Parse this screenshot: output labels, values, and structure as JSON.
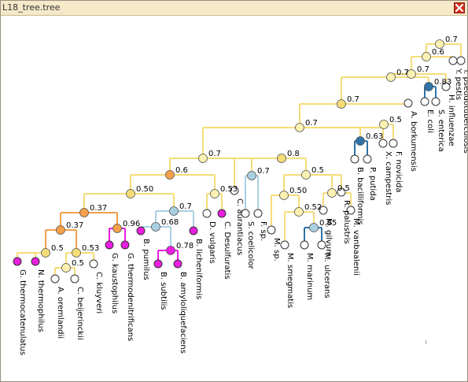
{
  "window": {
    "title": "L18_tree.tree",
    "close_icon": "close-icon"
  },
  "colors": {
    "orange": "#f5a14b",
    "yellow": "#f5dc77",
    "light_yellow": "#fbf1b3",
    "light_blue": "#a9cfe0",
    "blue": "#2f73a8",
    "magenta": "#e91ee0",
    "white": "#ffffff"
  },
  "tree": {
    "leaves": [
      {
        "id": "L1",
        "label": "G. thermocatenulatus"
      },
      {
        "id": "L2",
        "label": "N. thermophilus"
      },
      {
        "id": "L3",
        "label": "A. oremlandii"
      },
      {
        "id": "L4",
        "label": "C. beijerinckii"
      },
      {
        "id": "L5",
        "label": "C. kluyveri"
      },
      {
        "id": "L6",
        "label": "G. kaustophilus"
      },
      {
        "id": "L7",
        "label": "G. thermodenitrificans"
      },
      {
        "id": "L8",
        "label": "B. pumilus"
      },
      {
        "id": "L9",
        "label": "B. subtilis"
      },
      {
        "id": "L10",
        "label": "B. amyloliquefaciens"
      },
      {
        "id": "L11",
        "label": "B. licheniformis"
      },
      {
        "id": "L12",
        "label": "D. vulgaris"
      },
      {
        "id": "L13",
        "label": "C. Desulfuratis"
      },
      {
        "id": "L14",
        "label": "C. aurantiacus"
      },
      {
        "id": "L15",
        "label": "S. coelicolor"
      },
      {
        "id": "L16",
        "label": "F. sp."
      },
      {
        "id": "L17",
        "label": "M. sp."
      },
      {
        "id": "L18",
        "label": "M. smegmatis"
      },
      {
        "id": "L19",
        "label": "M. marinum"
      },
      {
        "id": "L20",
        "label": "M. ulcerans"
      },
      {
        "id": "L21",
        "label": "M. gilvum"
      },
      {
        "id": "L22",
        "label": "R. palustris"
      },
      {
        "id": "L23",
        "label": "M. vanbaalenii"
      },
      {
        "id": "L24",
        "label": "B. bacilliformis"
      },
      {
        "id": "L25",
        "label": "P. putida"
      },
      {
        "id": "L26",
        "label": "X. campestris"
      },
      {
        "id": "L27",
        "label": "F. novicida"
      },
      {
        "id": "L28",
        "label": "A. borkumensis"
      },
      {
        "id": "L29",
        "label": "E. coli"
      },
      {
        "id": "L30",
        "label": "S. enterica"
      },
      {
        "id": "L31",
        "label": "H. influenzae"
      },
      {
        "id": "L32",
        "label": "Y. pestis"
      },
      {
        "id": "L33",
        "label": "Y. pseudotuberculosis"
      }
    ],
    "internal_nodes": [
      {
        "id": "N1",
        "support": "0.5"
      },
      {
        "id": "N2",
        "support": "0.37"
      },
      {
        "id": "N3",
        "support": "0.37"
      },
      {
        "id": "N4",
        "support": "0.53"
      },
      {
        "id": "N5",
        "support": "0.5"
      },
      {
        "id": "N6",
        "support": "0.96"
      },
      {
        "id": "N7",
        "support": "0.68"
      },
      {
        "id": "N8",
        "support": "0.78"
      },
      {
        "id": "N9",
        "support": "0.7"
      },
      {
        "id": "N10",
        "support": "0.50"
      },
      {
        "id": "N11",
        "support": "0.53"
      },
      {
        "id": "N12",
        "support": "0.6"
      },
      {
        "id": "N13",
        "support": "0.7"
      },
      {
        "id": "N14",
        "support": "0.7"
      },
      {
        "id": "N15",
        "support": "0.7"
      },
      {
        "id": "N16",
        "support": "0.8"
      },
      {
        "id": "N17",
        "support": "0.5"
      },
      {
        "id": "N18",
        "support": "0.50"
      },
      {
        "id": "N19",
        "support": "0.52"
      },
      {
        "id": "N20",
        "support": "0.85"
      },
      {
        "id": "N21",
        "support": "0.5"
      },
      {
        "id": "N22",
        "support": "0.63"
      },
      {
        "id": "N23",
        "support": "0.5"
      },
      {
        "id": "N24",
        "support": "0.7"
      },
      {
        "id": "N25",
        "support": "0.7"
      },
      {
        "id": "N26",
        "support": "0.7"
      },
      {
        "id": "N27",
        "support": "0.83"
      },
      {
        "id": "N28",
        "support": "0.6"
      },
      {
        "id": "N29",
        "support": "0.7"
      },
      {
        "id": "N30",
        "support": "0.8"
      }
    ]
  }
}
